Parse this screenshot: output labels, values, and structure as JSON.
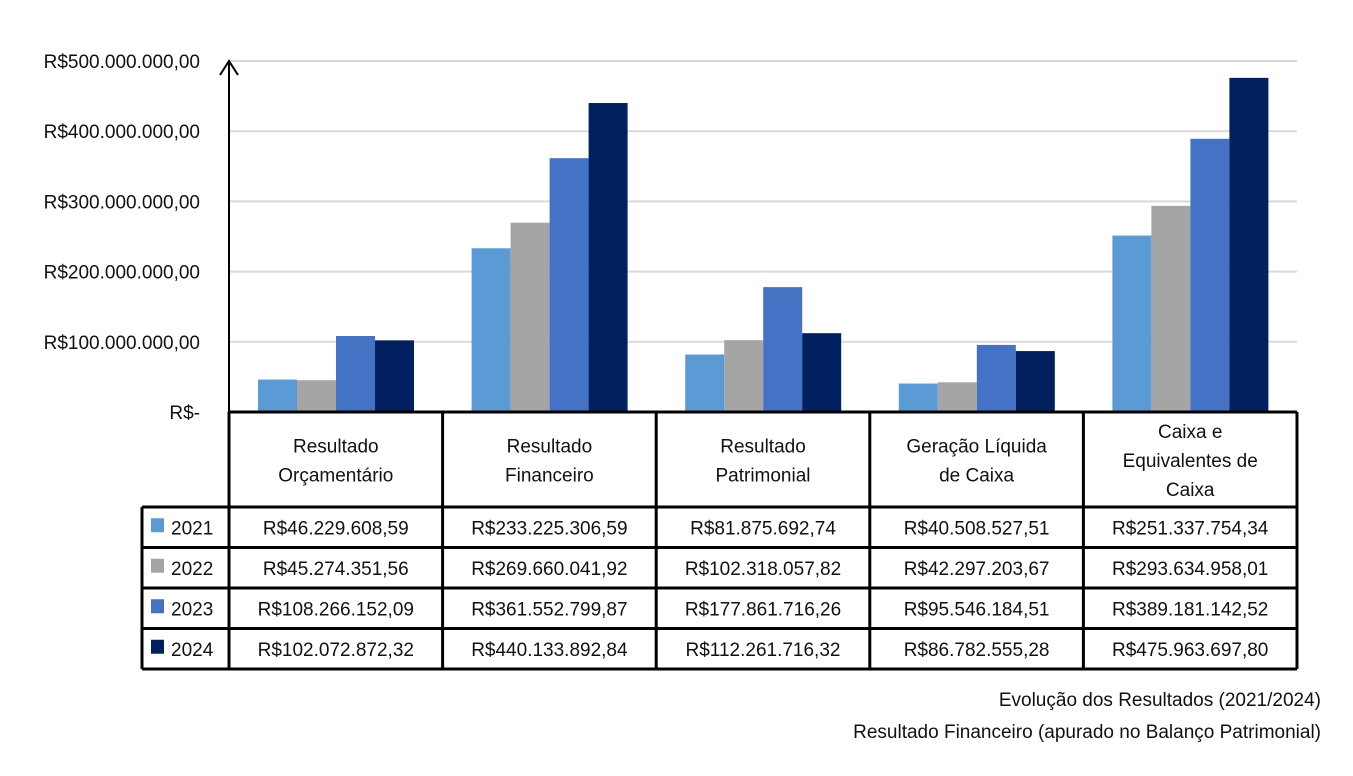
{
  "chart_data": {
    "type": "bar",
    "title": "Evolução dos Resultados (2021/2024)",
    "subtitle": "Resultado Financeiro (apurado no Balanço Patrimonial)",
    "categories": [
      [
        "Resultado",
        "Orçamentário"
      ],
      [
        "Resultado",
        "Financeiro"
      ],
      [
        "Resultado",
        "Patrimonial"
      ],
      [
        "Geração Líquida",
        "de Caixa"
      ],
      [
        "Caixa e",
        "Equivalentes de",
        "Caixa"
      ]
    ],
    "series": [
      {
        "name": "2021",
        "color": "#5B9BD5",
        "values": [
          46229608.59,
          233225306.59,
          81875692.74,
          40508527.51,
          251337754.34
        ],
        "labels": [
          "R$46.229.608,59",
          "R$233.225.306,59",
          "R$81.875.692,74",
          "R$40.508.527,51",
          "R$251.337.754,34"
        ]
      },
      {
        "name": "2022",
        "color": "#A5A5A5",
        "values": [
          45274351.56,
          269660041.92,
          102318057.82,
          42297203.67,
          293634958.01
        ],
        "labels": [
          "R$45.274.351,56",
          "R$269.660.041,92",
          "R$102.318.057,82",
          "R$42.297.203,67",
          "R$293.634.958,01"
        ]
      },
      {
        "name": "2023",
        "color": "#4472C4",
        "values": [
          108266152.09,
          361552799.87,
          177861716.26,
          95546184.51,
          389181142.52
        ],
        "labels": [
          "R$108.266.152,09",
          "R$361.552.799,87",
          "R$177.861.716,26",
          "R$95.546.184,51",
          "R$389.181.142,52"
        ]
      },
      {
        "name": "2024",
        "color": "#002060",
        "values": [
          102072872.32,
          440133892.84,
          112261716.32,
          86782555.28,
          475963697.8
        ],
        "labels": [
          "R$102.072.872,32",
          "R$440.133.892,84",
          "R$112.261.716,32",
          "R$86.782.555,28",
          "R$475.963.697,80"
        ]
      }
    ],
    "ylim": [
      0,
      500000000
    ],
    "yticks": [
      0,
      100000000,
      200000000,
      300000000,
      400000000,
      500000000
    ],
    "ytick_labels": [
      "R$-",
      "R$100.000.000,00",
      "R$200.000.000,00",
      "R$300.000.000,00",
      "R$400.000.000,00",
      "R$500.000.000,00"
    ],
    "grid": true,
    "legend": "data-table"
  }
}
